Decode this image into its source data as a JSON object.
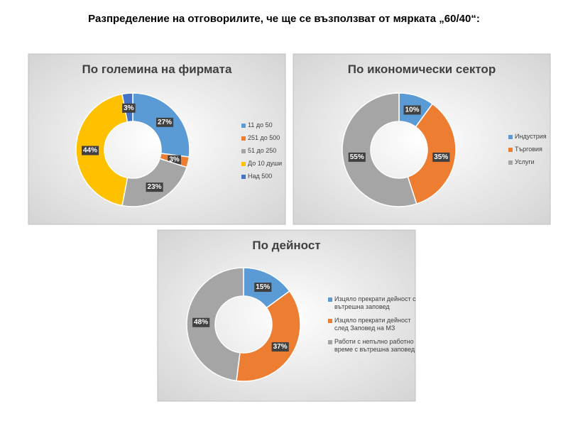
{
  "title": "Разпределение на отговорилите, че ще се възползват от мярката „60/40“:",
  "chart_data": [
    {
      "type": "donut",
      "title": "По големина на фирмата",
      "categories": [
        "11 до 50",
        "251 до 500",
        "51 до 250",
        "До 10 души",
        "Над 500"
      ],
      "values": [
        27,
        3,
        23,
        44,
        3
      ],
      "value_labels": [
        "27%",
        "3%",
        "23%",
        "44%",
        "3%"
      ],
      "colors": [
        "#5b9bd5",
        "#ed7d31",
        "#a5a5a5",
        "#ffc000",
        "#4472c4"
      ],
      "legend": "right"
    },
    {
      "type": "donut",
      "title": "По икономически сектор",
      "categories": [
        "Индустрия",
        "Търговия",
        "Услуги"
      ],
      "values": [
        10,
        35,
        55
      ],
      "value_labels": [
        "10%",
        "35%",
        "55%"
      ],
      "colors": [
        "#5b9bd5",
        "#ed7d31",
        "#a5a5a5"
      ],
      "legend": "right"
    },
    {
      "type": "donut",
      "title": "По дейност",
      "categories": [
        "Изцяло прекрати дейност с вътрешна заповед",
        "Изцяло прекрати дейност след Заповед на МЗ",
        "Работи с непълно работно време с вътрешна заповед"
      ],
      "values": [
        15,
        37,
        48
      ],
      "value_labels": [
        "15%",
        "37%",
        "48%"
      ],
      "colors": [
        "#5b9bd5",
        "#ed7d31",
        "#a5a5a5"
      ],
      "legend": "right"
    }
  ]
}
